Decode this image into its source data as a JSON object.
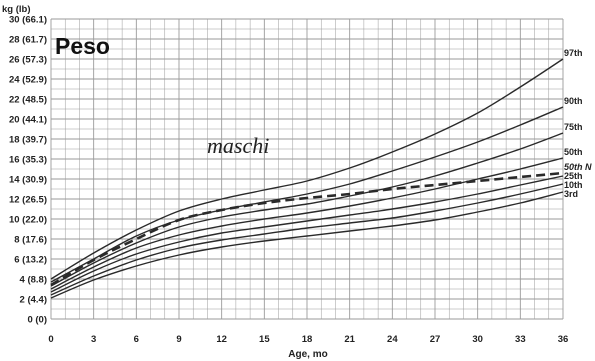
{
  "chart_data": {
    "type": "line",
    "title": "Peso",
    "subtitle": "maschi",
    "ylabel": "kg (lb)",
    "xlabel": "Age, mo",
    "xlim": [
      0,
      36
    ],
    "ylim": [
      0,
      30
    ],
    "x_ticks": [
      "0",
      "3",
      "6",
      "9",
      "12",
      "15",
      "18",
      "21",
      "24",
      "27",
      "30",
      "33",
      "36"
    ],
    "y_ticks": [
      "0 (0)",
      "2 (4.4)",
      "4 (8.8)",
      "6 (13.2)",
      "8 (17.6)",
      "10 (22.0)",
      "12 (26.5)",
      "14 (30.9)",
      "16 (35.3)",
      "18 (39.7)",
      "20 (44.1)",
      "22 (48.5)",
      "24 (52.9)",
      "26 (57.3)",
      "28 (61.7)",
      "30 (66.1)"
    ],
    "grid": true,
    "x": [
      0,
      3,
      6,
      9,
      12,
      15,
      18,
      21,
      24,
      27,
      30,
      33,
      36
    ],
    "series": [
      {
        "name": "97th",
        "values": [
          4.0,
          6.6,
          8.9,
          10.8,
          12.0,
          12.9,
          13.8,
          15.1,
          16.7,
          18.5,
          20.6,
          23.2,
          26.0
        ],
        "dashed": false
      },
      {
        "name": "90th",
        "values": [
          3.7,
          6.0,
          8.3,
          9.9,
          10.9,
          11.7,
          12.5,
          13.5,
          14.8,
          16.2,
          17.7,
          19.4,
          21.2
        ],
        "dashed": false
      },
      {
        "name": "75th",
        "values": [
          3.3,
          5.6,
          7.6,
          9.2,
          10.2,
          10.9,
          11.5,
          12.3,
          13.2,
          14.3,
          15.6,
          17.0,
          18.6
        ],
        "dashed": false
      },
      {
        "name": "50th",
        "values": [
          3.0,
          5.2,
          7.1,
          8.4,
          9.3,
          10.0,
          10.6,
          11.3,
          12.1,
          13.0,
          14.0,
          15.0,
          16.1
        ],
        "dashed": false
      },
      {
        "name": "50th N",
        "values": [
          3.4,
          5.9,
          8.0,
          9.9,
          10.9,
          11.6,
          12.1,
          12.5,
          13.0,
          13.4,
          13.8,
          14.2,
          14.6
        ],
        "dashed": true
      },
      {
        "name": "25th",
        "values": [
          2.7,
          4.8,
          6.5,
          7.7,
          8.6,
          9.2,
          9.8,
          10.4,
          11.0,
          11.7,
          12.5,
          13.4,
          14.3
        ],
        "dashed": false
      },
      {
        "name": "10th",
        "values": [
          2.4,
          4.3,
          5.9,
          7.1,
          7.9,
          8.5,
          9.1,
          9.6,
          10.1,
          10.8,
          11.6,
          12.5,
          13.5
        ],
        "dashed": false
      },
      {
        "name": "3rd",
        "values": [
          2.1,
          3.9,
          5.3,
          6.4,
          7.2,
          7.8,
          8.3,
          8.8,
          9.3,
          9.9,
          10.7,
          11.6,
          12.7
        ],
        "dashed": false
      }
    ],
    "line_color": "#2a2a2a",
    "grid_color": "#9a9a9a"
  }
}
